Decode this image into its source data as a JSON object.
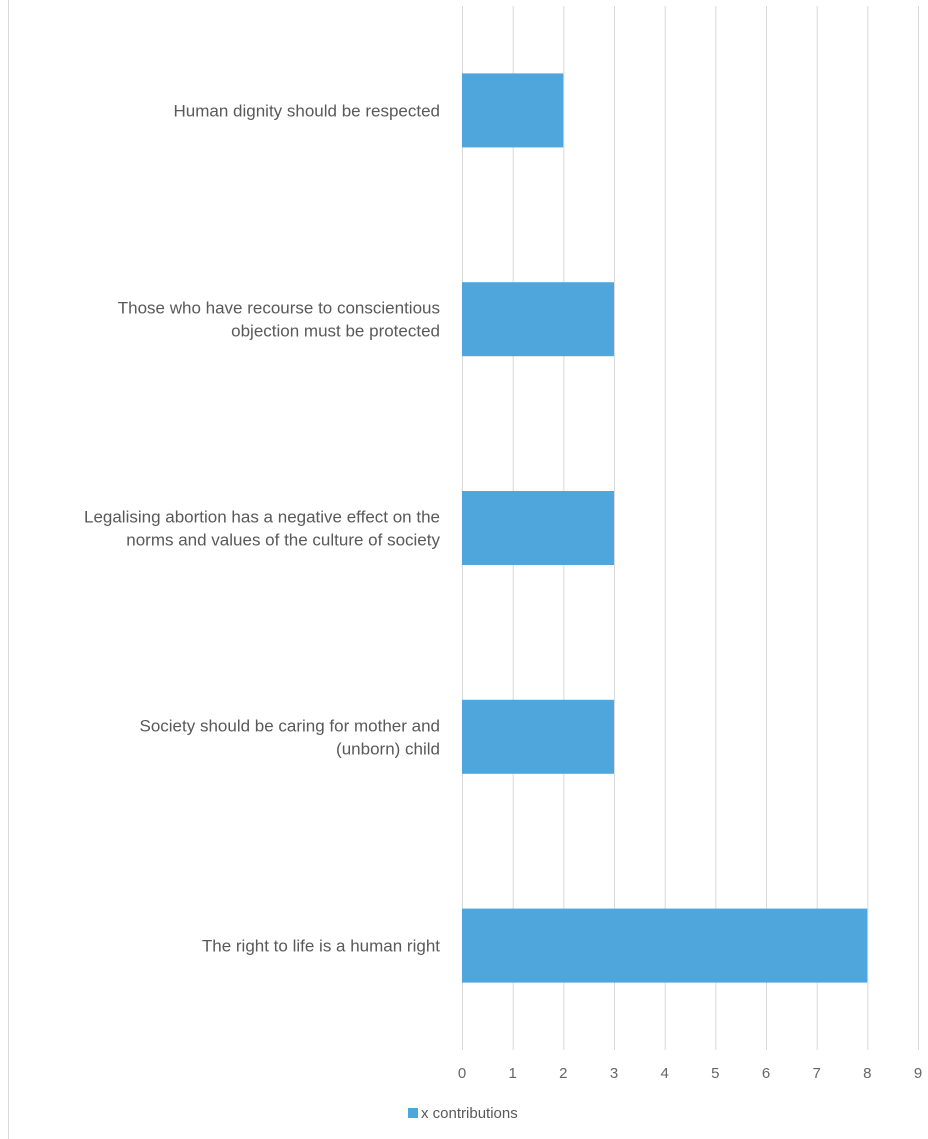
{
  "chart_data": {
    "type": "bar",
    "orientation": "horizontal",
    "categories": [
      "Human dignity should be respected",
      "Those who have recourse to conscientious objection must be protected",
      "Legalising abortion has a negative effect on the norms and values of the culture of society",
      "Society should be caring for mother and (unborn) child",
      "The right to life is a human right"
    ],
    "category_lines": [
      [
        "Human dignity should be respected"
      ],
      [
        "Those who have recourse to conscientious",
        "objection must be protected"
      ],
      [
        "Legalising abortion has a negative effect on the",
        "norms and values of the culture of society"
      ],
      [
        "Society should be caring for mother and",
        "(unborn) child"
      ],
      [
        "The right to life is a human right"
      ]
    ],
    "series": [
      {
        "name": "x contributions",
        "values": [
          2,
          3,
          3,
          3,
          8
        ],
        "color": "#4ea6dc"
      }
    ],
    "xlim": [
      0,
      9
    ],
    "x_ticks": [
      0,
      1,
      2,
      3,
      4,
      5,
      6,
      7,
      8,
      9
    ],
    "grid": true,
    "legend_position": "bottom"
  }
}
